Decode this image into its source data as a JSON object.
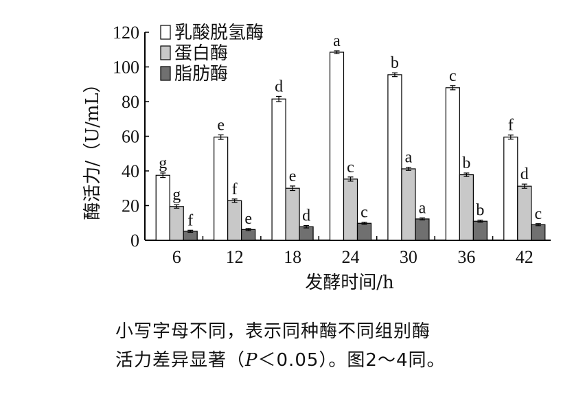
{
  "chart_data": {
    "type": "bar",
    "title": "",
    "xlabel": "发酵时间/h",
    "ylabel": "酶活力/（U/mL）",
    "ylim": [
      0,
      120
    ],
    "yticks": [
      0,
      20,
      40,
      60,
      80,
      100,
      120
    ],
    "categories": [
      "6",
      "12",
      "18",
      "24",
      "30",
      "36",
      "42"
    ],
    "legend_position": "top-left",
    "series": [
      {
        "name": "乳酸脱氢酶",
        "color": "#ffffff",
        "values": [
          37.5,
          59.5,
          81.5,
          108.5,
          95.5,
          88,
          59.5
        ],
        "errors": [
          1.3,
          1.3,
          1.5,
          0.8,
          1.1,
          1.2,
          1.2
        ],
        "labels": [
          "g",
          "e",
          "d",
          "a",
          "b",
          "c",
          "f"
        ]
      },
      {
        "name": "蛋白酶",
        "color": "#c8c8c8",
        "values": [
          19.5,
          22.8,
          30,
          35.3,
          41.2,
          37.8,
          31.2
        ],
        "errors": [
          1.0,
          1.0,
          1.3,
          1.2,
          0.9,
          1.0,
          1.2
        ],
        "labels": [
          "g",
          "f",
          "e",
          "c",
          "a",
          "b",
          "d"
        ]
      },
      {
        "name": "脂肪酶",
        "color": "#707070",
        "values": [
          5.2,
          6.2,
          7.8,
          9.8,
          12.3,
          11,
          9
        ],
        "errors": [
          0.6,
          0.6,
          0.7,
          0.6,
          0.6,
          0.6,
          0.6
        ],
        "labels": [
          "f",
          "e",
          "d",
          "c",
          "a",
          "b",
          "c"
        ]
      }
    ]
  },
  "caption": {
    "line1": "小写字母不同，表示同种酶不同组别酶",
    "line2_prefix": "活力差异显著（",
    "line2_p": "P",
    "line2_suffix": "＜0.05）。图2～4同。"
  }
}
